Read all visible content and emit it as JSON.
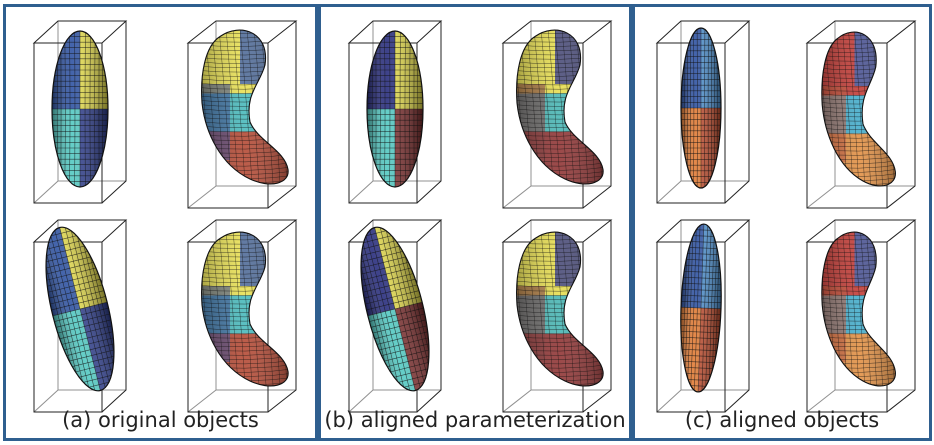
{
  "panels": [
    {
      "id": "a",
      "caption": "(a) original objects",
      "colors": {
        "e_top_a": "#2a4fa0",
        "e_top_b": "#e9e04a",
        "e_bot_a": "#4fc7c0",
        "e_bot_b": "#2a3a8c",
        "h_top": "#e8df4a",
        "h_mid": "#3fb6b8",
        "h_bot": "#b0402a"
      }
    },
    {
      "id": "b",
      "caption": "(b) aligned parameterization",
      "colors": {
        "e_top_a": "#23287a",
        "e_top_b": "#e6dd48",
        "e_bot_a": "#4fc7c0",
        "e_bot_b": "#7a2a2a",
        "h_top": "#e6dc46",
        "h_mid": "#3fb2b0",
        "h_bot": "#8a2a2a"
      }
    },
    {
      "id": "c",
      "caption": "(c) aligned objects",
      "colors": {
        "e_top_a": "#2a4fa0",
        "e_top_b": "#4a8fd0",
        "e_bot_a": "#e07830",
        "e_bot_b": "#c04a2a",
        "h_top": "#c0302a",
        "h_mid": "#3aa8c8",
        "h_bot": "#e08a3a"
      }
    }
  ]
}
